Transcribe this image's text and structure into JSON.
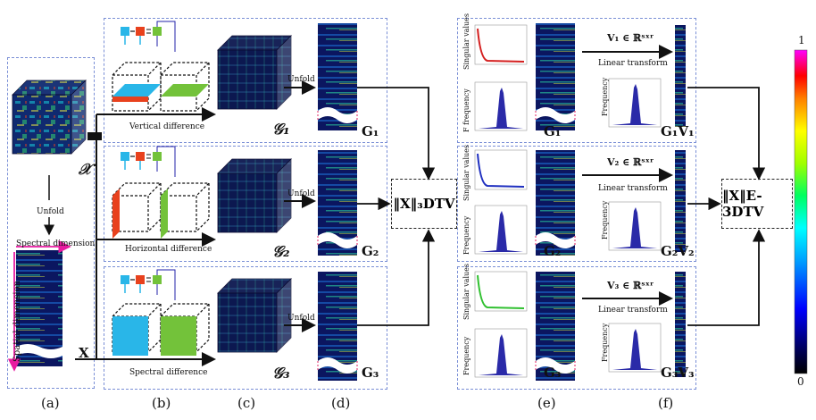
{
  "panels": {
    "a": "(a)",
    "b": "(b)",
    "c": "(c)",
    "d": "(d)",
    "e": "(e)",
    "f": "(f)"
  },
  "labels": {
    "unfold_left": "Unfold",
    "spectral_dimension": "Spectral dimension",
    "spatial_dimension": "Spatial dimension",
    "tensor_X": "𝒳",
    "matrix_X": "X",
    "vertical_difference": "Vertical difference",
    "horizontal_difference": "Horizontal difference",
    "spectral_difference": "Spectral difference",
    "unfold": "Unfold",
    "G1_tensor": "𝒢₁",
    "G2_tensor": "𝒢₂",
    "G3_tensor": "𝒢₃",
    "G1": "G₁",
    "G2": "G₂",
    "G3": "G₃",
    "norm_3dtv": "‖𝐗‖₃DTV",
    "norm_e3dtv": "‖𝐗‖E-3DTV",
    "V1_def": "V₁ ∈ ℝˢˣʳ",
    "V2_def": "V₂ ∈ ℝˢˣʳ",
    "V3_def": "V₃ ∈ ℝˢˣʳ",
    "linear_transform": "Linear transform",
    "G1V1": "G₁V₁",
    "G2V2": "G₂V₂",
    "G3V3": "G₃V₃",
    "singular_values": "Singular values",
    "frequency": "Frequency",
    "f_frequency": "F frequency",
    "colorbar_max": "1",
    "colorbar_min": "0"
  },
  "colors": {
    "dash_blue": "#7a8fd6",
    "cyan": "#29b6e8",
    "orange_red": "#e8411d",
    "green": "#73c23a",
    "heat_dark": "#0b1660",
    "plot_red": "#d42020",
    "plot_blue": "#2030c0",
    "plot_green": "#30c030",
    "hist_blue": "#2a2aa8"
  }
}
